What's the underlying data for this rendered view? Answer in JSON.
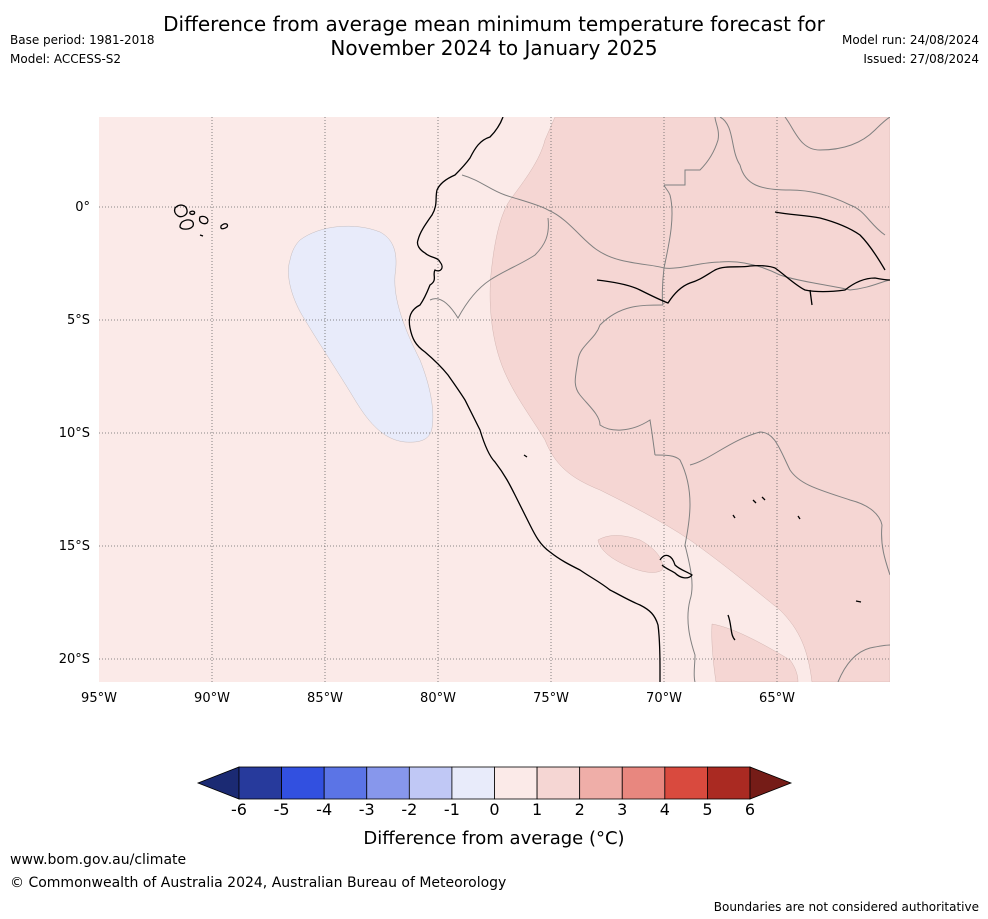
{
  "header": {
    "title_line1": "Difference from average mean minimum temperature forecast for",
    "title_line2": "November 2024 to January 2025",
    "base_period": "Base period: 1981-2018",
    "model": "Model: ACCESS-S2",
    "model_run": "Model run: 24/08/2024",
    "issued": "Issued: 27/08/2024"
  },
  "map": {
    "lat_labels": [
      "0°",
      "5°S",
      "10°S",
      "15°S",
      "20°S"
    ],
    "lon_labels": [
      "95°W",
      "90°W",
      "85°W",
      "80°W",
      "75°W",
      "70°W",
      "65°W"
    ],
    "colors": {
      "anom_0_1": "#fbeae8",
      "anom_1_2": "#f5d6d3",
      "anom_m1_0": "#e8ebfa",
      "coast": "#000000",
      "border": "#808080",
      "grid": "#666666"
    }
  },
  "colorbar": {
    "ticks": [
      "-6",
      "-5",
      "-4",
      "-3",
      "-2",
      "-1",
      "0",
      "1",
      "2",
      "3",
      "4",
      "5",
      "6"
    ],
    "colors": [
      "#273a9c",
      "#3250e0",
      "#5b74e6",
      "#8797ec",
      "#c0c8f5",
      "#e8ebfa",
      "#fbeae8",
      "#f5d6d3",
      "#efaea8",
      "#e8877f",
      "#d94a3e",
      "#aa2a22"
    ],
    "extend_low_color": "#1b2a73",
    "extend_high_color": "#751c17",
    "label": "Difference from average (°C)"
  },
  "footer": {
    "url": "www.bom.gov.au/climate",
    "copyright": "© Commonwealth of Australia 2024, Australian Bureau of Meteorology",
    "disclaimer": "Boundaries are not considered authoritative"
  }
}
